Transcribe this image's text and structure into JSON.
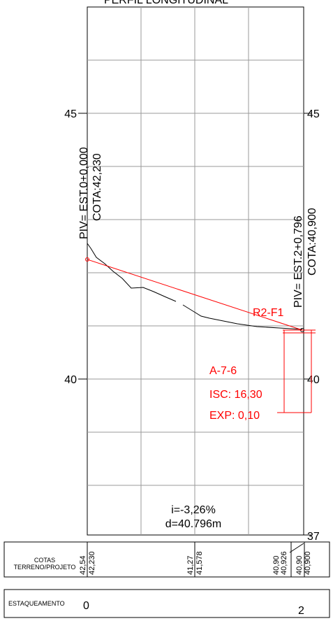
{
  "title": "PERFIL LONGITUDINAL",
  "y_axis": {
    "left_labels": [
      "45",
      "40"
    ],
    "right_labels": [
      "45",
      "40",
      "37"
    ]
  },
  "piv_start": {
    "label": "PIV= EST.0+0,000",
    "cota": "COTA:42,230"
  },
  "piv_end": {
    "label": "PIV= EST.2+0,796",
    "cota": "COTA:40,900"
  },
  "sondagem": {
    "id": "R2-F1",
    "soil_class": "A-7-6",
    "isc": "ISC: 16,30",
    "exp": "EXP: 0,10"
  },
  "grade": {
    "slope": "i=-3,26%",
    "distance": "d=40.796m"
  },
  "table": {
    "row_cotas_label_1": "COTAS",
    "row_cotas_label_2": "TERRENO/PROJETO",
    "row_estaq_label": "ESTAQUEAMENTO",
    "stations": [
      "0",
      "2"
    ],
    "cotas": [
      {
        "terreno": "42,54",
        "projeto": "42,230"
      },
      {
        "terreno": "41,27",
        "projeto": "41,578"
      },
      {
        "terreno": "40,90",
        "projeto": "40,926"
      },
      {
        "terreno": "40,90",
        "projeto": "40,900"
      }
    ]
  },
  "colors": {
    "grid": "#9a9a9a",
    "terrain": "#000000",
    "design": "#ff0000",
    "annotation": "#ff0000"
  }
}
